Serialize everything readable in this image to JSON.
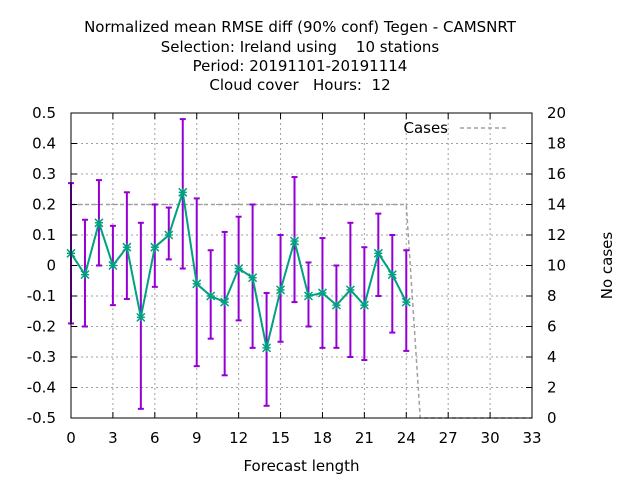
{
  "colors": {
    "mean_line": "#00a080",
    "error_bars": "#9400d3",
    "cases_line": "#a0a0a0",
    "grid": "#a0a0a0"
  },
  "chart_data": {
    "type": "line",
    "title": [
      "Normalized mean RMSE diff (90% conf) Tegen - CAMSNRT",
      "Selection: Ireland using    10 stations",
      "Period: 20191101-20191114",
      "Cloud cover   Hours:  12"
    ],
    "xlabel": "Forecast length",
    "ylabel": "",
    "y2label": "No cases",
    "xlim": [
      0,
      33
    ],
    "ylim": [
      -0.5,
      0.5
    ],
    "y2lim": [
      0,
      20
    ],
    "xticks": [
      0,
      3,
      6,
      9,
      12,
      15,
      18,
      21,
      24,
      27,
      30,
      33
    ],
    "yticks": [
      -0.5,
      -0.4,
      -0.3,
      -0.2,
      -0.1,
      0,
      0.1,
      0.2,
      0.3,
      0.4,
      0.5
    ],
    "ytick_labels": [
      "-0.5",
      "-0.4",
      "-0.3",
      "-0.2",
      "-0.1",
      "0",
      "0.1",
      "0.2",
      "0.3",
      "0.4",
      "0.5"
    ],
    "y2ticks": [
      0,
      2,
      4,
      6,
      8,
      10,
      12,
      14,
      16,
      18,
      20
    ],
    "grid": true,
    "legend_position": "top-right",
    "series": [
      {
        "name": "",
        "axis": "y1",
        "x": [
          0,
          1,
          2,
          3,
          4,
          5,
          6,
          7,
          8,
          9,
          10,
          11,
          12,
          13,
          14,
          15,
          16,
          17,
          18,
          19,
          20,
          21,
          22,
          23,
          24
        ],
        "y": [
          0.04,
          -0.03,
          0.14,
          0.0,
          0.06,
          -0.17,
          0.06,
          0.1,
          0.24,
          -0.06,
          -0.1,
          -0.12,
          -0.01,
          -0.04,
          -0.27,
          -0.08,
          0.08,
          -0.1,
          -0.09,
          -0.13,
          -0.08,
          -0.13,
          0.04,
          -0.03,
          -0.12
        ],
        "err_low": [
          -0.19,
          -0.2,
          0.0,
          -0.13,
          -0.11,
          -0.47,
          -0.07,
          0.02,
          -0.01,
          -0.33,
          -0.24,
          -0.36,
          -0.18,
          -0.27,
          -0.46,
          -0.25,
          -0.12,
          -0.2,
          -0.27,
          -0.27,
          -0.3,
          -0.31,
          -0.1,
          -0.22,
          -0.28
        ],
        "err_high": [
          0.27,
          0.15,
          0.28,
          0.13,
          0.24,
          0.14,
          0.2,
          0.19,
          0.48,
          0.22,
          0.05,
          0.11,
          0.16,
          0.2,
          -0.09,
          0.1,
          0.29,
          0.01,
          0.09,
          0.0,
          0.14,
          0.06,
          0.17,
          0.1,
          0.05
        ]
      },
      {
        "name": "Cases",
        "axis": "y2",
        "x": [
          0,
          24,
          25,
          33
        ],
        "y": [
          14,
          14,
          0,
          0
        ]
      }
    ]
  }
}
